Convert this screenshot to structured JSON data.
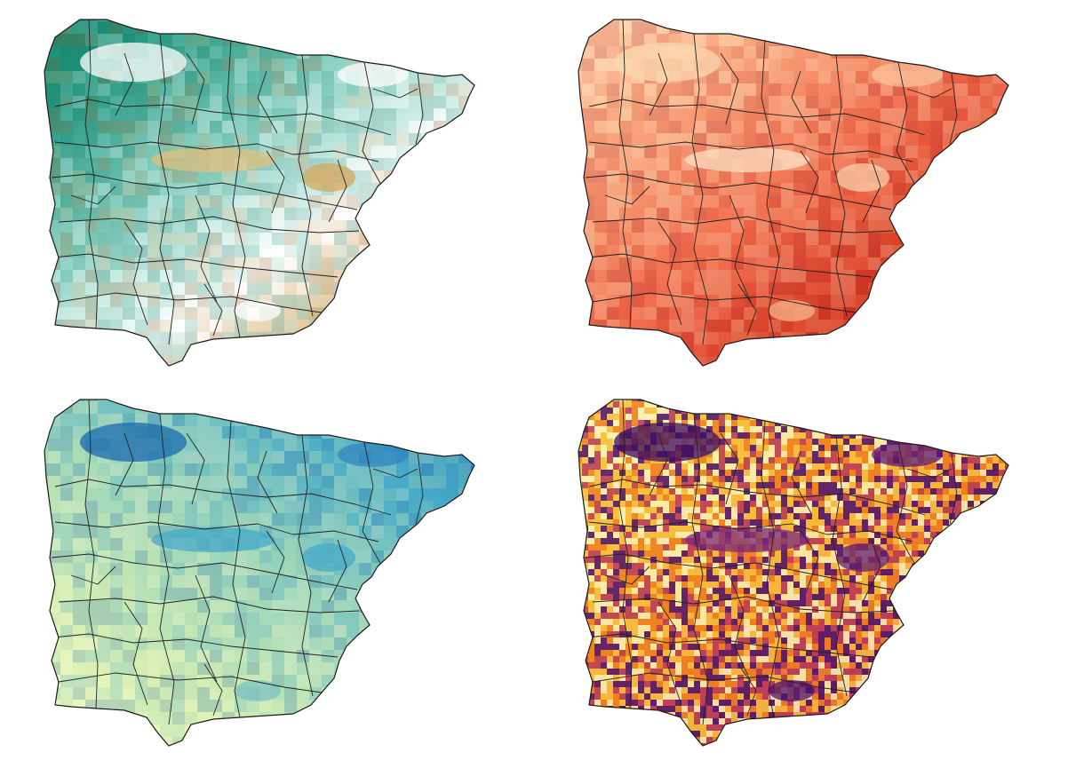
{
  "figure": {
    "panels": [
      {
        "id": "elevation",
        "colormap": [
          "#0f7a62",
          "#2a9b86",
          "#8fd3c6",
          "#ffffff",
          "#d8b070",
          "#8a5a1a"
        ],
        "highlights": [
          "#ffffff",
          "#ffffff",
          "#e0c080",
          "#ffffff",
          "#d4a860"
        ],
        "noise": "smooth"
      },
      {
        "id": "temperature",
        "colormap": [
          "#ffe8c8",
          "#fbb58c",
          "#f07050",
          "#d0301c",
          "#a80c10"
        ],
        "highlights": [
          "#fbd8b0",
          "#f8c29a",
          "#fde2c4",
          "#f6b48a",
          "#fbd0aa"
        ],
        "noise": "smooth"
      },
      {
        "id": "precipitation",
        "colormap": [
          "#fbfccb",
          "#d8efb3",
          "#9ad4bb",
          "#46aac7",
          "#1a6aae"
        ],
        "highlights": [
          "#1a6aae",
          "#2f86bd",
          "#46aac7",
          "#7cc3c2",
          "#46aac7"
        ],
        "noise": "smooth"
      },
      {
        "id": "residuals",
        "colormap": [
          "#fbf5b8",
          "#f8c040",
          "#ee8020",
          "#b83a5a",
          "#4a1270"
        ],
        "highlights": [
          "#3a0c62",
          "#5a1878",
          "#7a2a78",
          "#4a1270",
          "#602070"
        ],
        "noise": "pixel"
      }
    ]
  }
}
